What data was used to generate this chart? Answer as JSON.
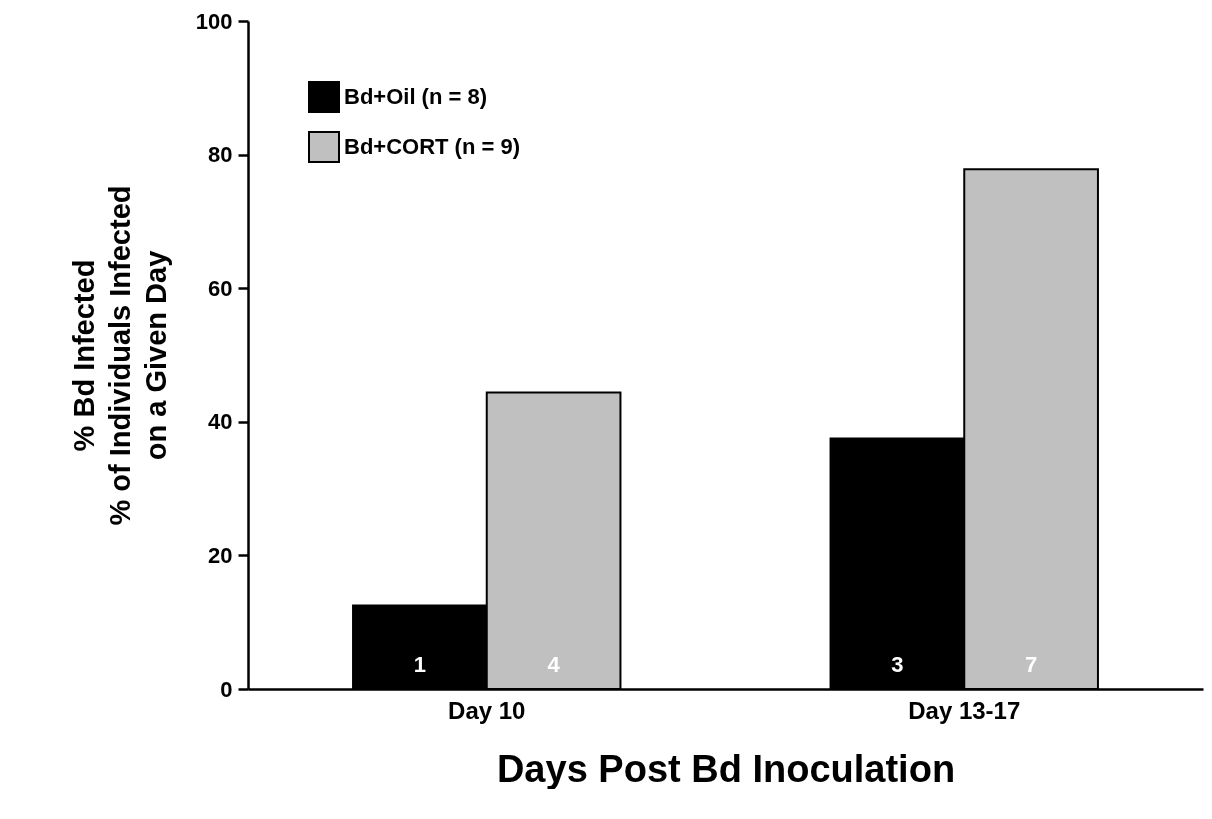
{
  "chart_data": {
    "type": "bar",
    "xlabel": "Days Post Bd Inoculation",
    "ylabel": "% Bd Infected\n% of Individuals Infected\non a Given Day",
    "categories": [
      "Day 10",
      "Day 13-17"
    ],
    "series": [
      {
        "name": "Bd+Oil (n = 8)",
        "color": "#000000",
        "values": [
          12.5,
          37.5
        ]
      },
      {
        "name": "Bd+CORT (n = 9)",
        "color": "#c0c0c0",
        "values": [
          44.4,
          77.8
        ]
      }
    ],
    "annotations": [
      {
        "text": "1",
        "x": "Day 10",
        "y": 0
      },
      {
        "text": "4",
        "x": "Day 10",
        "y": 0
      },
      {
        "text": "3",
        "x": "Day 13-17",
        "y": 0
      },
      {
        "text": "7",
        "x": "Day 13-17",
        "y": 0
      }
    ],
    "ylim": [
      0,
      100
    ],
    "yticks": [
      0,
      20,
      40,
      60,
      80,
      100
    ],
    "grid": false,
    "legend": "top left"
  }
}
